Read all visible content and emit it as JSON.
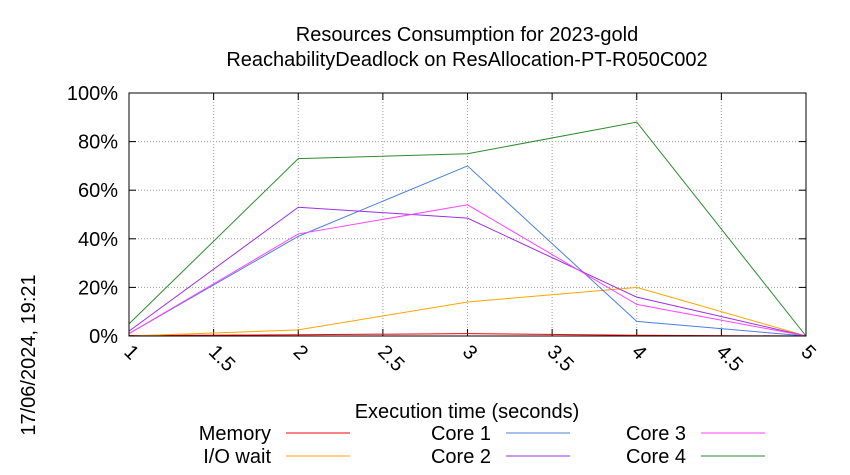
{
  "chart_data": {
    "type": "line",
    "title": "Resources Consumption for 2023-gold",
    "subtitle": "ReachabilityDeadlock on ResAllocation-PT-R050C002",
    "xlabel": "Execution time (seconds)",
    "ylabel": "",
    "xlim": [
      1,
      5
    ],
    "ylim": [
      0,
      100
    ],
    "x_ticks": [
      "1",
      "1.5",
      "2",
      "2.5",
      "3",
      "3.5",
      "4",
      "4.5",
      "5"
    ],
    "y_ticks": [
      "0%",
      "20%",
      "40%",
      "60%",
      "80%",
      "100%"
    ],
    "grid": true,
    "legend_position": "bottom",
    "x": [
      1,
      2,
      3,
      4,
      5
    ],
    "series": [
      {
        "name": "Memory",
        "color": "#ff0000",
        "values": [
          0.2,
          0.5,
          1.0,
          0.3,
          0
        ]
      },
      {
        "name": "I/O wait",
        "color": "#ffa500",
        "values": [
          0,
          2.5,
          14,
          20,
          0
        ]
      },
      {
        "name": "Core 1",
        "color": "#4a7fe0",
        "values": [
          1,
          41,
          70,
          6,
          0
        ]
      },
      {
        "name": "Core 2",
        "color": "#9b30e0",
        "values": [
          2,
          53,
          48.5,
          16,
          0
        ]
      },
      {
        "name": "Core 3",
        "color": "#ff44ff",
        "values": [
          1,
          42,
          54,
          13,
          0
        ]
      },
      {
        "name": "Core 4",
        "color": "#2e8b2e",
        "values": [
          5,
          73,
          75,
          88,
          0
        ]
      }
    ],
    "side_label": "17/06/2024, 19:21"
  }
}
